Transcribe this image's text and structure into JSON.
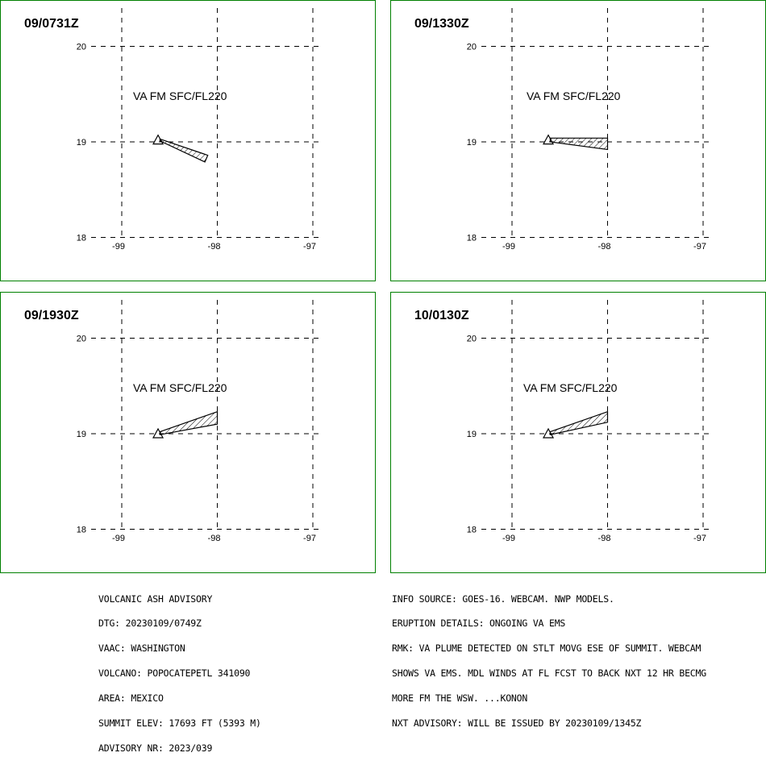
{
  "panels": [
    {
      "time": "09/0731Z",
      "label": "VA FM SFC/FL220",
      "polygon": [
        [
          -98.6,
          19.03
        ],
        [
          -98.1,
          18.86
        ],
        [
          -98.13,
          18.79
        ],
        [
          -98.6,
          19.01
        ]
      ],
      "vent": [
        -98.62,
        19.02
      ]
    },
    {
      "time": "09/1330Z",
      "label": "VA FM SFC/FL220",
      "polygon": [
        [
          -98.6,
          19.04
        ],
        [
          -98.0,
          19.04
        ],
        [
          -98.0,
          18.92
        ],
        [
          -98.6,
          19.0
        ]
      ],
      "vent": [
        -98.62,
        19.02
      ]
    },
    {
      "time": "09/1930Z",
      "label": "VA FM SFC/FL220",
      "polygon": [
        [
          -98.6,
          19.02
        ],
        [
          -98.0,
          19.23
        ],
        [
          -98.0,
          19.1
        ],
        [
          -98.6,
          18.99
        ]
      ],
      "vent": [
        -98.62,
        19.0
      ]
    },
    {
      "time": "10/0130Z",
      "label": "VA FM SFC/FL220",
      "polygon": [
        [
          -98.6,
          19.02
        ],
        [
          -98.0,
          19.23
        ],
        [
          -98.0,
          19.12
        ],
        [
          -98.6,
          18.99
        ]
      ],
      "vent": [
        -98.62,
        19.0
      ]
    }
  ],
  "axes": {
    "lon_ticks": [
      -99,
      -98,
      -97
    ],
    "lat_ticks": [
      20,
      19,
      18
    ],
    "lon_labels": [
      "-99",
      "-98",
      "-97"
    ],
    "lat_labels": [
      "20",
      "19",
      "18"
    ]
  },
  "info_left": [
    "VOLCANIC ASH ADVISORY",
    "DTG: 20230109/0749Z",
    "VAAC: WASHINGTON",
    "VOLCANO: POPOCATEPETL 341090",
    "AREA: MEXICO",
    "SUMMIT ELEV: 17693 FT (5393 M)",
    "ADVISORY NR: 2023/039"
  ],
  "info_right": [
    "INFO SOURCE: GOES-16. WEBCAM. NWP MODELS.",
    "ERUPTION DETAILS: ONGOING VA EMS",
    "RMK: VA PLUME DETECTED ON STLT MOVG ESE OF SUMMIT. WEBCAM",
    "SHOWS VA EMS. MDL WINDS AT FL FCST TO BACK NXT 12 HR BECMG",
    "MORE FM THE WSW. ...KONON",
    "NXT ADVISORY: WILL BE ISSUED BY 20230109/1345Z"
  ],
  "colors": {
    "frame": "#008000",
    "lines": "#000000",
    "background": "#ffffff"
  }
}
